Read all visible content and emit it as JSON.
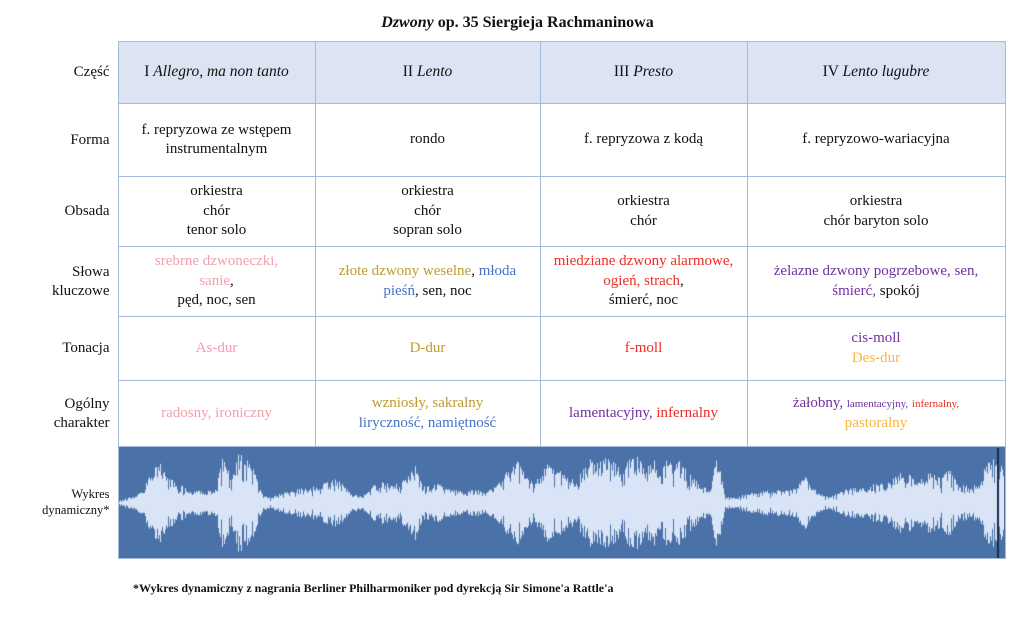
{
  "title": {
    "italic": "Dzwony",
    "rest": " op. 35 Siergieja Rachmaninowa"
  },
  "colors": {
    "pink": "#f2a0ad",
    "gold": "#bf9b2e",
    "blue": "#4472c4",
    "red": "#ee2c24",
    "purple": "#7030a0",
    "amber": "#f9b73f",
    "black": "#111111"
  },
  "row_labels": {
    "czesc": "Część",
    "forma": "Forma",
    "obsada": "Obsada",
    "slowa": "Słowa kluczowe",
    "tonacja": "Tonacja",
    "charakter": "Ogólny charakter",
    "wykres": "Wykres dynamiczny*"
  },
  "movements": [
    {
      "num": "I",
      "tempo": "Allegro, ma non tanto"
    },
    {
      "num": "II",
      "tempo": "Lento"
    },
    {
      "num": "III",
      "tempo": "Presto"
    },
    {
      "num": "IV",
      "tempo": "Lento lugubre"
    }
  ],
  "cells": {
    "forma": [
      [
        {
          "t": "f. repryzowa ze wstępem instrumentalnym"
        }
      ],
      [
        {
          "t": "rondo"
        }
      ],
      [
        {
          "t": "f. repryzowa z kodą"
        }
      ],
      [
        {
          "t": "f. repryzowo-wariacyjna"
        }
      ]
    ],
    "obsada": [
      [
        {
          "t": "orkiestra"
        },
        "br",
        {
          "t": "chór"
        },
        "br",
        {
          "t": "tenor solo"
        }
      ],
      [
        {
          "t": "orkiestra"
        },
        "br",
        {
          "t": "chór"
        },
        "br",
        {
          "t": "sopran solo"
        }
      ],
      [
        {
          "t": "orkiestra"
        },
        "br",
        {
          "t": "chór"
        }
      ],
      [
        {
          "t": "orkiestra"
        },
        "br",
        {
          "t": "chór baryton solo"
        }
      ]
    ],
    "slowa": [
      [
        {
          "t": "srebrne dzwoneczki,",
          "c": "pink"
        },
        "br",
        {
          "t": "sanie",
          "c": "pink"
        },
        {
          "t": ","
        },
        "br",
        {
          "t": "pęd, noc, sen"
        }
      ],
      [
        {
          "t": "złote dzwony weselne",
          "c": "gold"
        },
        {
          "t": ", "
        },
        {
          "t": "młoda pieśń",
          "c": "blue"
        },
        {
          "t": ", sen, noc"
        }
      ],
      [
        {
          "t": "miedziane dzwony alarmowe, ogień, strach",
          "c": "red"
        },
        {
          "t": ","
        },
        "br",
        {
          "t": "śmierć, noc"
        }
      ],
      [
        {
          "t": "żelazne dzwony pogrzebowe, sen, śmierć,",
          "c": "purple"
        },
        {
          "t": " spokój"
        }
      ]
    ],
    "tonacja": [
      [
        {
          "t": "As-dur",
          "c": "pink"
        }
      ],
      [
        {
          "t": "D-dur",
          "c": "gold"
        }
      ],
      [
        {
          "t": "f-moll",
          "c": "red"
        }
      ],
      [
        {
          "t": "cis-moll",
          "c": "purple"
        },
        "br",
        {
          "t": "Des-dur",
          "c": "amber"
        }
      ]
    ],
    "charakter": [
      [
        {
          "t": "radosny, ironiczny",
          "c": "pink"
        }
      ],
      [
        {
          "t": "wzniosły, sakralny",
          "c": "gold"
        },
        "br",
        {
          "t": "liryczność, namiętność",
          "c": "blue"
        }
      ],
      [
        {
          "t": "lamentacyjny,",
          "c": "purple"
        },
        {
          "t": " "
        },
        {
          "t": "infernalny",
          "c": "red"
        }
      ],
      [
        {
          "t": "żałobny,",
          "c": "purple"
        },
        {
          "t": " "
        },
        {
          "t": "lamentacyjny,",
          "c": "purple",
          "s": 11
        },
        {
          "t": " "
        },
        {
          "t": "infernalny,",
          "c": "red",
          "s": 11
        },
        "br",
        {
          "t": "pastoralny",
          "c": "amber"
        }
      ]
    ]
  },
  "waveform": {
    "bg": "#4a72a8",
    "fg": "#d9e5f6",
    "cursor": "#1b2b4d",
    "envelope": [
      0.05,
      0.1,
      0.12,
      0.3,
      0.55,
      0.8,
      0.6,
      0.4,
      0.35,
      0.3,
      0.28,
      0.25,
      0.22,
      0.9,
      0.5,
      0.95,
      0.85,
      0.6,
      0.15,
      0.1,
      0.18,
      0.22,
      0.25,
      0.28,
      0.3,
      0.35,
      0.4,
      0.45,
      0.4,
      0.2,
      0.15,
      0.18,
      0.35,
      0.4,
      0.38,
      0.42,
      0.45,
      0.75,
      0.35,
      0.32,
      0.38,
      0.3,
      0.25,
      0.22,
      0.28,
      0.25,
      0.2,
      0.3,
      0.45,
      0.7,
      0.9,
      0.55,
      0.35,
      0.6,
      0.8,
      0.7,
      0.5,
      0.45,
      0.6,
      0.85,
      0.75,
      0.9,
      0.8,
      0.6,
      0.85,
      0.95,
      0.7,
      0.8,
      0.9,
      0.75,
      0.85,
      0.65,
      0.5,
      0.4,
      0.2,
      0.95,
      0.12,
      0.1,
      0.15,
      0.18,
      0.2,
      0.25,
      0.22,
      0.28,
      0.25,
      0.3,
      0.55,
      0.3,
      0.15,
      0.12,
      0.18,
      0.25,
      0.3,
      0.28,
      0.35,
      0.4,
      0.35,
      0.45,
      0.6,
      0.55,
      0.4,
      0.5,
      0.65,
      0.45,
      0.7,
      0.4,
      0.35,
      0.3,
      0.45,
      0.85,
      0.9,
      0.6
    ]
  },
  "footnote": "*Wykres dynamiczny z nagrania Berliner Philharmoniker pod dyrekcją Sir Simone'a Rattle'a"
}
